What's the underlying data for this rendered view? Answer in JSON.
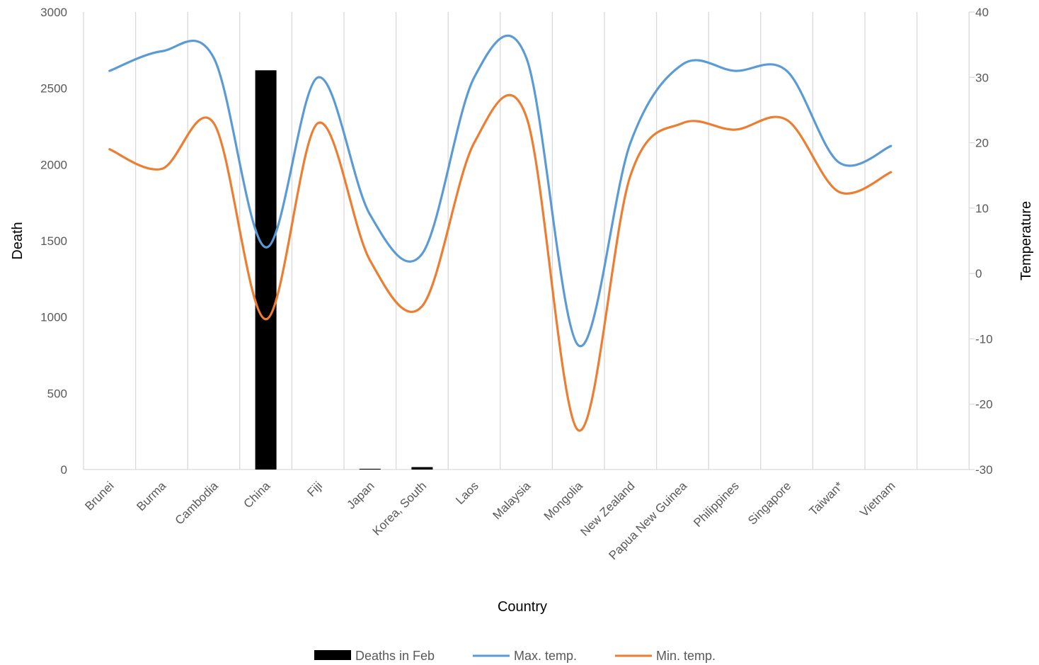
{
  "chart_data": {
    "type": "bar+line",
    "categories": [
      "Brunei",
      "Burma",
      "Cambodia",
      "China",
      "Fiji",
      "Japan",
      "Korea, South",
      "Laos",
      "Malaysia",
      "Mongolia",
      "New Zealand",
      "Papua New Guinea",
      "Philippines",
      "Singapore",
      "Taiwan*",
      "Vietnam"
    ],
    "xlabel": "Country",
    "ylabel_left": "Death",
    "ylabel_right": "Temperature",
    "ylim_left": [
      0,
      3000
    ],
    "yticks_left": [
      0,
      500,
      1000,
      1500,
      2000,
      2500,
      3000
    ],
    "ylim_right": [
      -30,
      40
    ],
    "yticks_right": [
      -30,
      -20,
      -10,
      0,
      10,
      20,
      30,
      40
    ],
    "grid": "vertical",
    "legend_position": "bottom",
    "series": [
      {
        "name": "Deaths in Feb",
        "type": "bar",
        "axis": "left",
        "color": "#000000",
        "values": [
          0,
          0,
          0,
          2618,
          0,
          5,
          16,
          0,
          0,
          0,
          0,
          0,
          0,
          0,
          0,
          0
        ]
      },
      {
        "name": "Max. temp.",
        "type": "line",
        "axis": "right",
        "color": "#5B9BD5",
        "values": [
          31,
          34,
          33,
          4,
          30,
          9,
          3,
          30,
          33,
          -11,
          20,
          32,
          31,
          31,
          17,
          19.5
        ]
      },
      {
        "name": "Min. temp.",
        "type": "line",
        "axis": "right",
        "color": "#ED7D31",
        "values": [
          19,
          16,
          23,
          -7,
          23,
          2,
          -5,
          20,
          24,
          -24,
          15,
          23,
          22,
          23.5,
          12.5,
          15.5
        ]
      }
    ]
  }
}
